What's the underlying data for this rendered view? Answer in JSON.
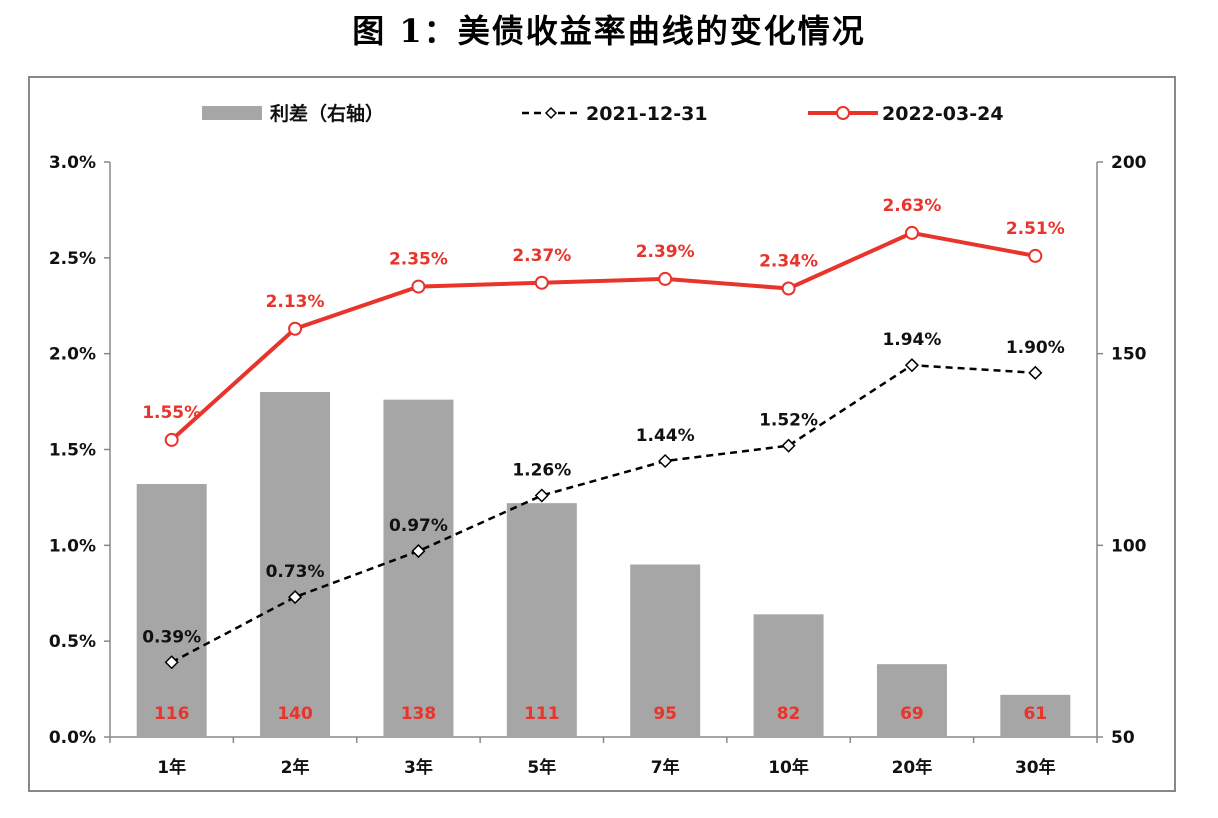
{
  "title": "图 1：美债收益率曲线的变化情况",
  "chart_data": {
    "type": "bar+line",
    "categories": [
      "1年",
      "2年",
      "3年",
      "5年",
      "7年",
      "10年",
      "20年",
      "30年"
    ],
    "series": [
      {
        "name": "利差（右轴）",
        "kind": "bar",
        "axis": "right",
        "values": [
          116,
          140,
          138,
          111,
          95,
          82,
          69,
          61
        ],
        "color": "#a6a6a6",
        "label_color": "#e8342a"
      },
      {
        "name": "2021-12-31",
        "kind": "line",
        "style": "dashed",
        "marker": "diamond",
        "axis": "left",
        "values": [
          0.39,
          0.73,
          0.97,
          1.26,
          1.44,
          1.52,
          1.94,
          1.9
        ],
        "labels": [
          "0.39%",
          "0.73%",
          "0.97%",
          "1.26%",
          "1.44%",
          "1.52%",
          "1.94%",
          "1.90%"
        ],
        "color": "#000000"
      },
      {
        "name": "2022-03-24",
        "kind": "line",
        "style": "solid",
        "marker": "circle",
        "axis": "left",
        "values": [
          1.55,
          2.13,
          2.35,
          2.37,
          2.39,
          2.34,
          2.63,
          2.51
        ],
        "labels": [
          "1.55%",
          "2.13%",
          "2.35%",
          "2.37%",
          "2.39%",
          "2.34%",
          "2.63%",
          "2.51%"
        ],
        "color": "#e8342a"
      }
    ],
    "y_left": {
      "min": 0,
      "max": 3.0,
      "ticks": [
        "0.0%",
        "0.5%",
        "1.0%",
        "1.5%",
        "2.0%",
        "2.5%",
        "3.0%"
      ]
    },
    "y_right": {
      "min": 50,
      "max": 200,
      "ticks": [
        "50",
        "100",
        "150",
        "200"
      ]
    },
    "legend_position": "top"
  }
}
